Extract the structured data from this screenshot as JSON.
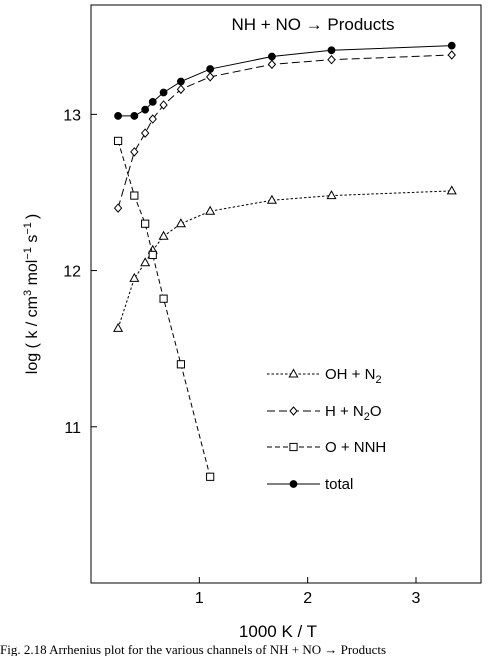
{
  "figure": {
    "caption": "Fig. 2.18  Arrhenius plot for the various channels of NH + NO → Products"
  },
  "chart_data": {
    "type": "line",
    "title": "NH + NO → Products",
    "xlabel": "1000 K / T",
    "ylabel": {
      "prefix": "log ( k / cm",
      "exp1": "3",
      "mid": " mol",
      "exp2": "−1",
      "mid2": " s",
      "exp3": "−1",
      "suffix": ")"
    },
    "xlim": [
      0,
      3.6
    ],
    "ylim": [
      10,
      13.7
    ],
    "xticks": [
      1,
      2,
      3
    ],
    "yticks": [
      11,
      12,
      13
    ],
    "grid": false,
    "legend_position": "bottom-right inside plot",
    "series": [
      {
        "name": "OH + N2",
        "name_main": "OH + N",
        "name_sub": "2",
        "marker": "triangle-open",
        "line": "dotted",
        "x": [
          0.25,
          0.4,
          0.5,
          0.57,
          0.67,
          0.83,
          1.1,
          1.67,
          2.22,
          3.33
        ],
        "y": [
          11.63,
          11.95,
          12.05,
          12.13,
          12.22,
          12.3,
          12.38,
          12.45,
          12.48,
          12.51
        ]
      },
      {
        "name": "H + N2O",
        "name_main": "H + N",
        "name_sub": "2",
        "name_tail": "O",
        "marker": "diamond-open",
        "line": "long-dash",
        "x": [
          0.25,
          0.4,
          0.5,
          0.57,
          0.67,
          0.83,
          1.1,
          1.67,
          2.22,
          3.33
        ],
        "y": [
          12.4,
          12.76,
          12.88,
          12.97,
          13.06,
          13.16,
          13.24,
          13.32,
          13.35,
          13.38
        ]
      },
      {
        "name": "O + NNH",
        "name_main": "O + NNH",
        "marker": "square-open",
        "line": "dashed",
        "x": [
          0.25,
          0.4,
          0.5,
          0.57,
          0.67,
          0.83,
          1.1
        ],
        "y": [
          12.83,
          12.48,
          12.3,
          12.1,
          11.82,
          11.4,
          10.68
        ]
      },
      {
        "name": "total",
        "name_main": "total",
        "marker": "circle-filled",
        "line": "solid",
        "x": [
          0.25,
          0.4,
          0.5,
          0.57,
          0.67,
          0.83,
          1.1,
          1.67,
          2.22,
          3.33
        ],
        "y": [
          12.99,
          12.99,
          13.03,
          13.08,
          13.14,
          13.21,
          13.29,
          13.37,
          13.41,
          13.44
        ]
      }
    ]
  }
}
